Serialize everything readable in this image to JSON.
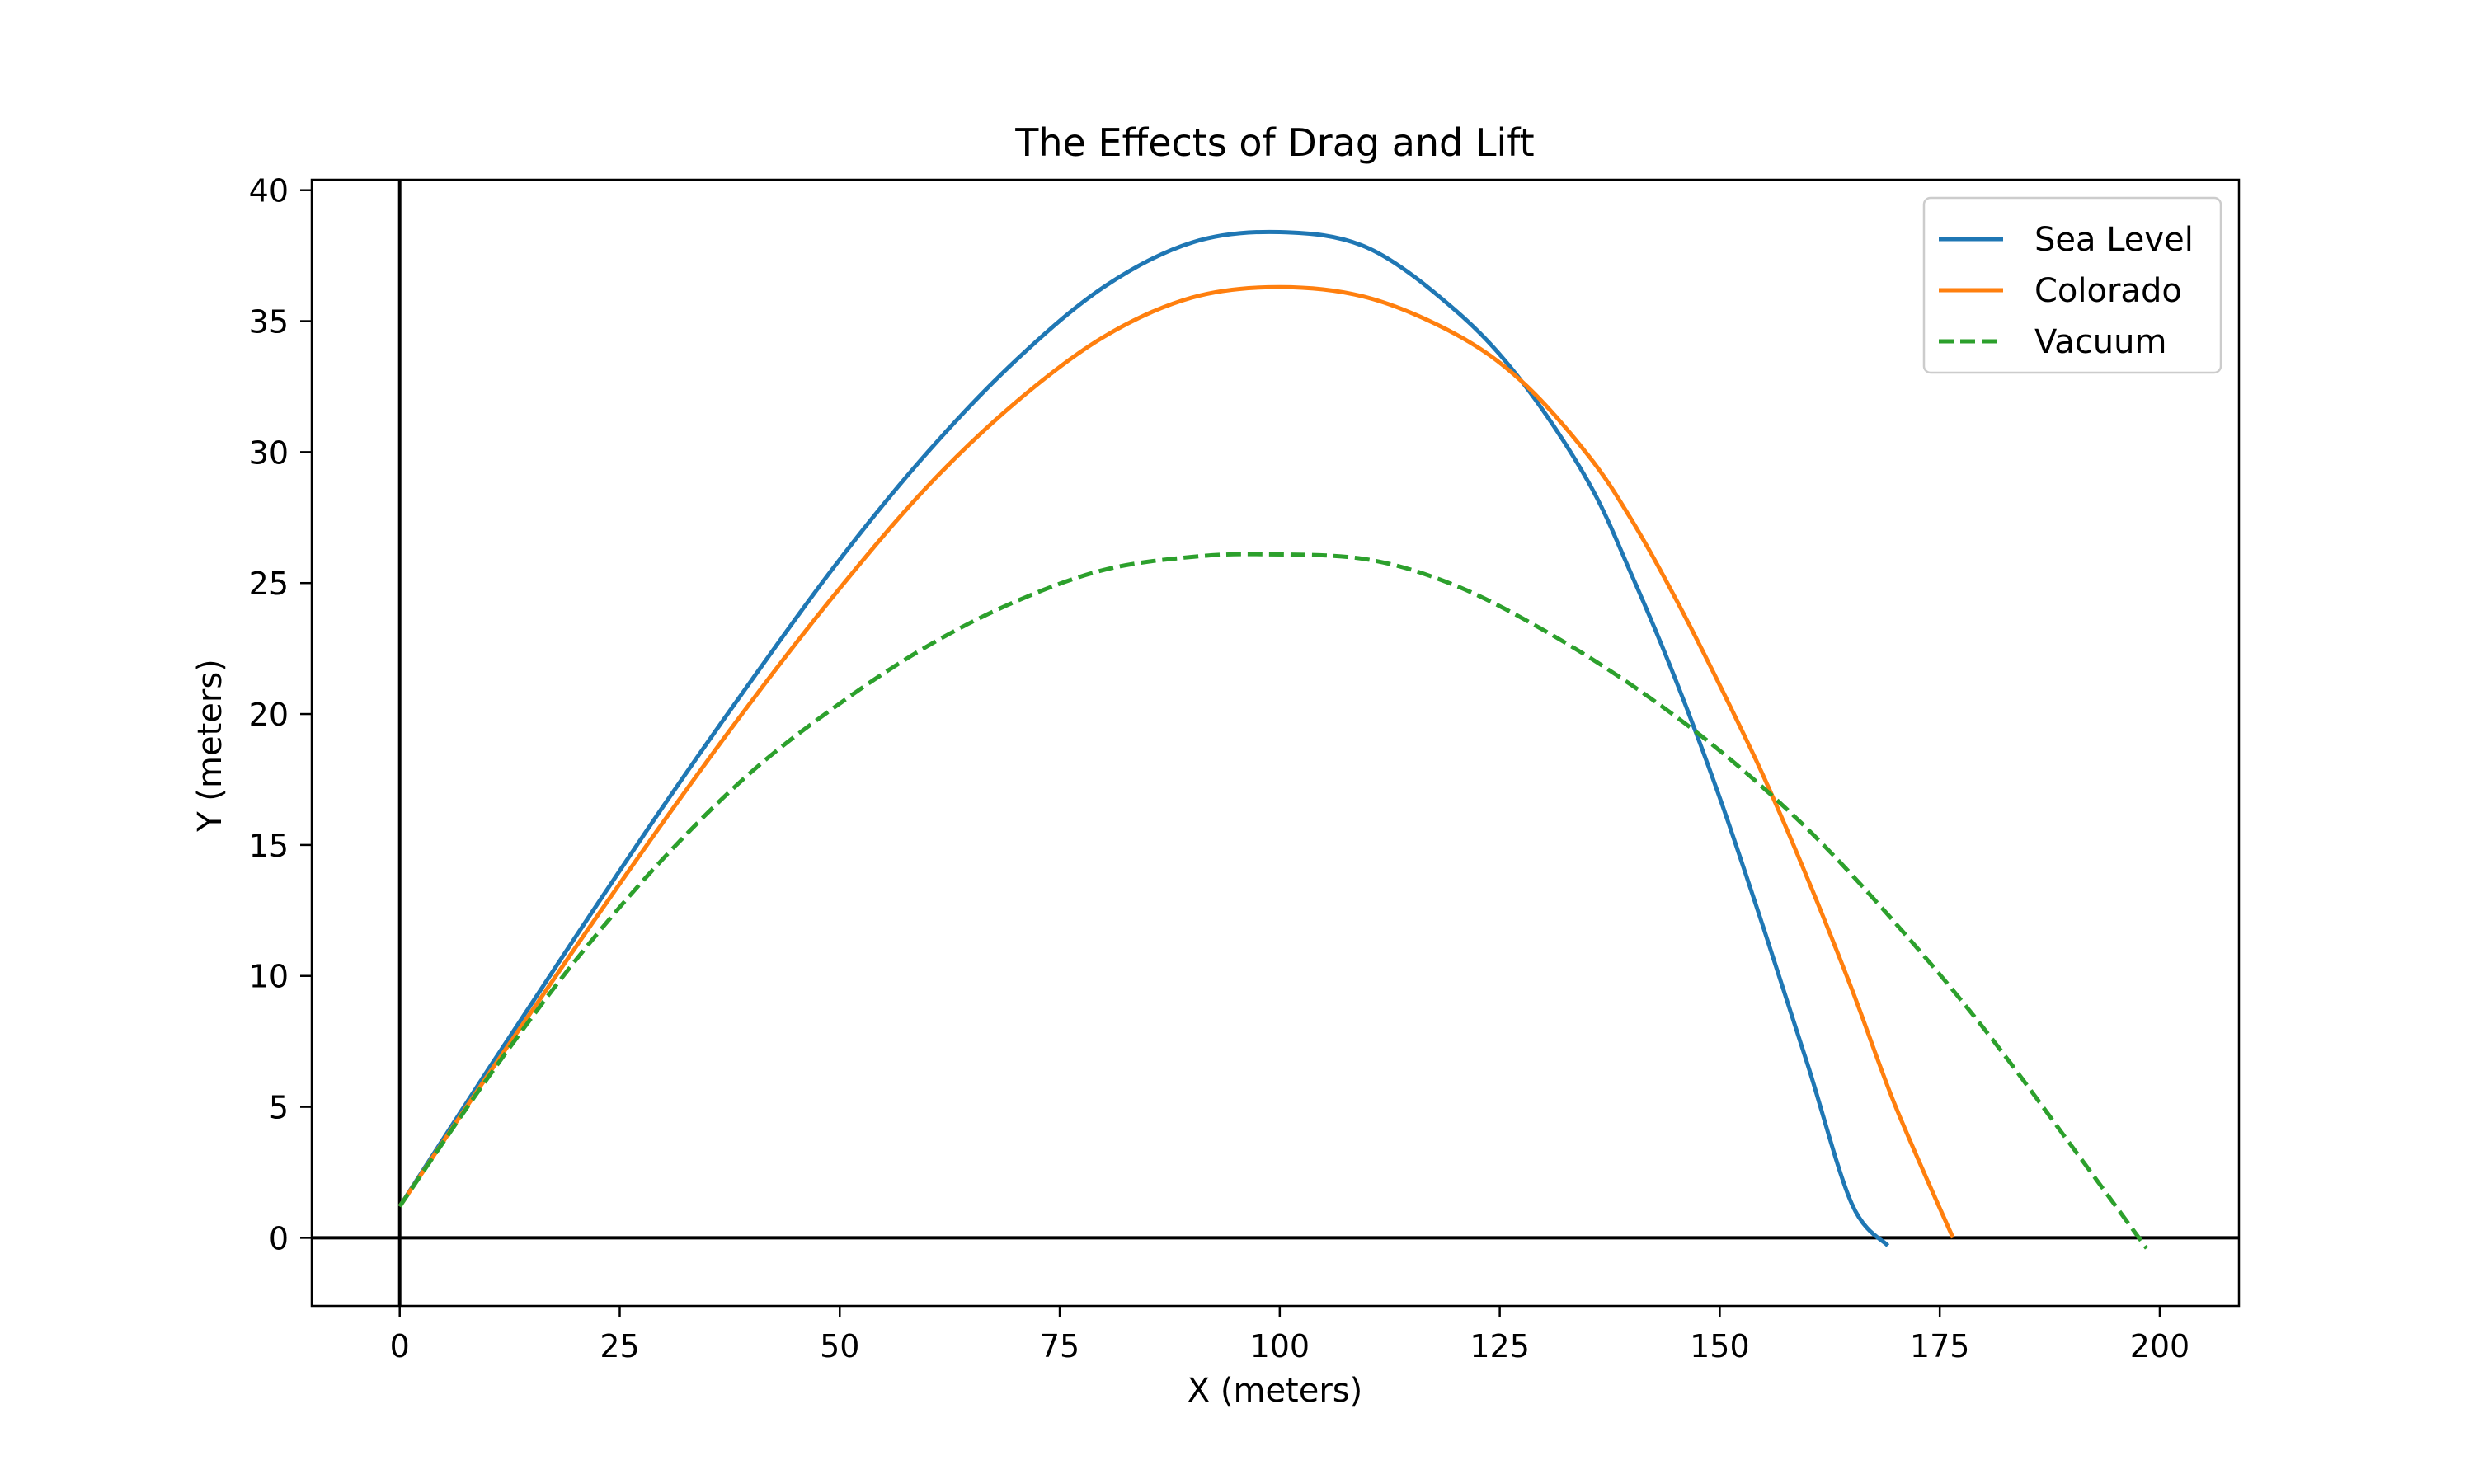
{
  "chart_data": {
    "type": "line",
    "title": "The Effects of Drag and Lift",
    "xlabel": "X (meters)",
    "ylabel": "Y (meters)",
    "xlim": [
      -10,
      209
    ],
    "ylim": [
      -2.6,
      40.4
    ],
    "xticks": [
      0,
      25,
      50,
      75,
      100,
      125,
      150,
      175,
      200
    ],
    "yticks": [
      0,
      5,
      10,
      15,
      20,
      25,
      30,
      35,
      40
    ],
    "grid": false,
    "reference_lines": {
      "x": 0,
      "y": 0,
      "color": "#000000"
    },
    "legend": {
      "placement": "top-right"
    },
    "series": [
      {
        "name": "Sea Level",
        "color": "#1f77b4",
        "style": "solid",
        "x": [
          0,
          10,
          20,
          30,
          40,
          50,
          60,
          70,
          80,
          90,
          100,
          110,
          120,
          127.5,
          135,
          140,
          145,
          150,
          155,
          160,
          165,
          169.1
        ],
        "y": [
          1.2,
          6.4,
          11.5,
          16.5,
          21.3,
          25.9,
          30.0,
          33.5,
          36.3,
          38.0,
          38.4,
          37.8,
          35.4,
          32.7,
          28.9,
          25.3,
          21.3,
          16.8,
          11.8,
          6.6,
          1.3,
          -0.3
        ]
      },
      {
        "name": "Colorado",
        "color": "#ff7f0e",
        "style": "solid",
        "x": [
          0,
          10,
          20,
          30,
          40,
          50,
          60,
          70,
          80,
          90,
          100,
          110,
          120,
          127.5,
          135,
          140,
          145,
          150,
          155,
          160,
          165,
          170,
          176.5
        ],
        "y": [
          1.2,
          6.2,
          11.1,
          15.9,
          20.5,
          24.8,
          28.7,
          31.9,
          34.4,
          35.9,
          36.3,
          35.9,
          34.5,
          32.7,
          29.9,
          27.4,
          24.4,
          21.1,
          17.6,
          13.7,
          9.5,
          5.0,
          0.0
        ]
      },
      {
        "name": "Vacuum",
        "color": "#2ca02c",
        "style": "dashed",
        "x": [
          0,
          10,
          20,
          30,
          40,
          50,
          60,
          70,
          80,
          90,
          98.5,
          110,
          120,
          130,
          140,
          150,
          160,
          170,
          180,
          190,
          198.5
        ],
        "y": [
          1.2,
          6.1,
          10.6,
          14.5,
          17.8,
          20.4,
          22.6,
          24.3,
          25.5,
          26.0,
          26.1,
          25.9,
          24.9,
          23.2,
          21.1,
          18.6,
          15.6,
          12.0,
          8.0,
          3.5,
          -0.4
        ]
      }
    ]
  }
}
